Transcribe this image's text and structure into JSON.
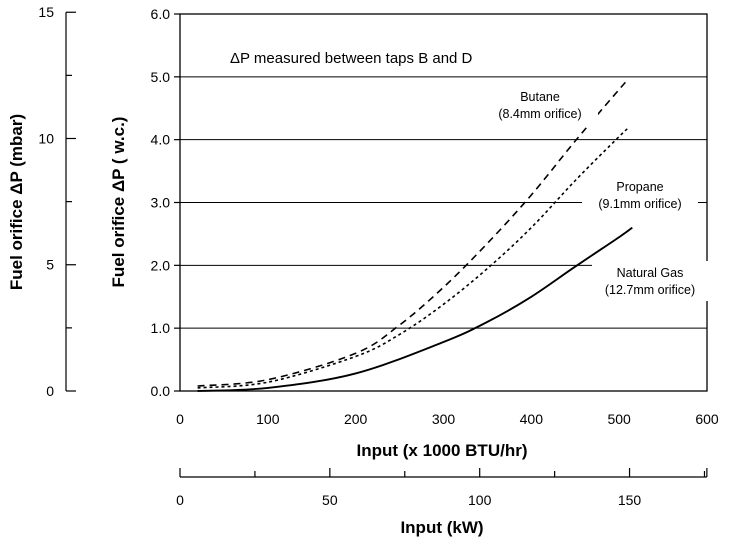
{
  "chart_data": {
    "type": "line",
    "title": "",
    "annotation": "ΔP measured between taps B and D",
    "xlabel": "Input (x 1000 BTU/hr)",
    "ylabel": "Fuel orifice ΔP ( w.c.)",
    "xlim": [
      0,
      600
    ],
    "ylim": [
      0,
      6
    ],
    "x_ticks": [
      "0",
      "100",
      "200",
      "300",
      "400",
      "500",
      "600"
    ],
    "y_ticks": [
      "0.0",
      "1.0",
      "2.0",
      "3.0",
      "4.0",
      "5.0",
      "6.0"
    ],
    "grid": "horizontal",
    "secondary_y_axis": {
      "label": "Fuel orifice ΔP (mbar)",
      "ticks": [
        "0",
        "5",
        "10",
        "15"
      ],
      "range": [
        0,
        15
      ]
    },
    "secondary_x_axis": {
      "label": "Input (kW)",
      "ticks": [
        "0",
        "50",
        "100",
        "150"
      ],
      "range": [
        0,
        175.8
      ]
    },
    "series": [
      {
        "name": "Butane",
        "label_line1": "Butane",
        "label_line2": "(8.4mm orifice)",
        "style": "dashed",
        "x": [
          20,
          100,
          200,
          250,
          300,
          350,
          400,
          450,
          500,
          510
        ],
        "y": [
          0.08,
          0.18,
          0.6,
          1.05,
          1.65,
          2.35,
          3.12,
          3.98,
          4.8,
          4.95
        ]
      },
      {
        "name": "Propane",
        "label_line1": "Propane",
        "label_line2": "(9.1mm orifice)",
        "style": "dotted",
        "x": [
          20,
          100,
          200,
          250,
          300,
          350,
          400,
          450,
          500,
          510
        ],
        "y": [
          0.05,
          0.14,
          0.55,
          0.9,
          1.38,
          1.95,
          2.6,
          3.35,
          4.05,
          4.18
        ]
      },
      {
        "name": "Natural Gas",
        "label_line1": "Natural Gas",
        "label_line2": "(12.7mm orifice)",
        "style": "solid",
        "x": [
          20,
          100,
          200,
          300,
          350,
          400,
          450,
          500,
          515
        ],
        "y": [
          0.0,
          0.05,
          0.28,
          0.78,
          1.1,
          1.5,
          1.98,
          2.45,
          2.6
        ]
      }
    ]
  }
}
